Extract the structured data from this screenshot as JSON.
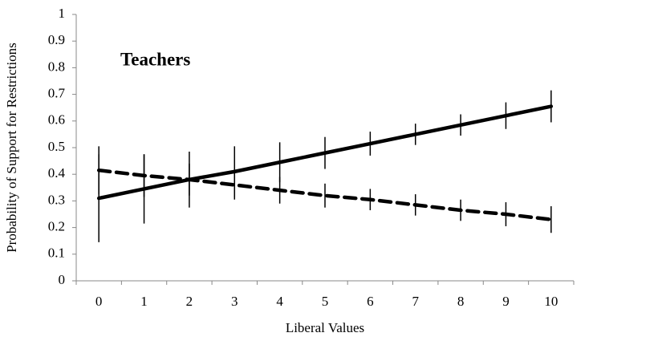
{
  "chart_data": {
    "type": "line",
    "annotation": "Teachers",
    "x_label": "Liberal Values",
    "y_label": "Probability of Support for Restrictions",
    "categories": [
      "0",
      "1",
      "2",
      "3",
      "4",
      "5",
      "6",
      "7",
      "8",
      "9",
      "10"
    ],
    "series": [
      {
        "color": "#000000",
        "dashed": false,
        "values": [
          0.31,
          0.345,
          0.38,
          0.41,
          0.445,
          0.48,
          0.515,
          0.55,
          0.585,
          0.62,
          0.655
        ],
        "errors": [
          0.165,
          0.13,
          0.105,
          0.095,
          0.075,
          0.06,
          0.045,
          0.04,
          0.04,
          0.05,
          0.06
        ]
      },
      {
        "color": "#000000",
        "dashed": true,
        "values": [
          0.415,
          0.395,
          0.38,
          0.36,
          0.34,
          0.32,
          0.305,
          0.285,
          0.265,
          0.25,
          0.23
        ],
        "errors": [
          0.09,
          0.08,
          0.06,
          0.055,
          0.05,
          0.045,
          0.04,
          0.04,
          0.04,
          0.045,
          0.05
        ]
      }
    ],
    "ylim": [
      0,
      1
    ],
    "yticks": [
      0,
      0.1,
      0.2,
      0.3,
      0.4,
      0.5,
      0.6,
      0.7,
      0.8,
      0.9,
      1
    ]
  }
}
